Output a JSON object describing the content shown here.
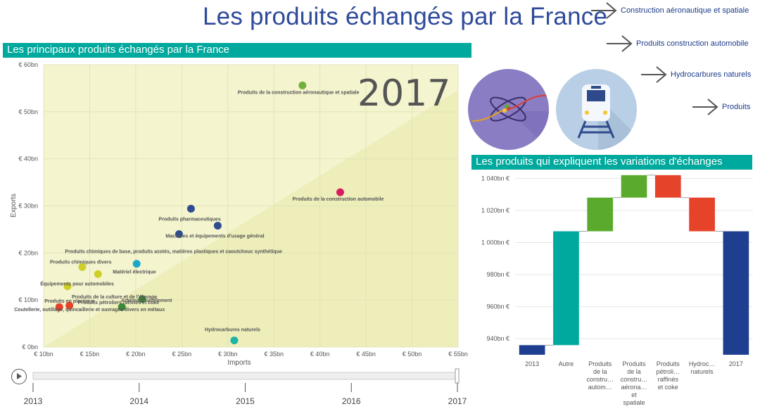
{
  "header": {
    "title": "Les produits échangés par la France"
  },
  "nav_links": [
    {
      "label": "Construction aéronautique et spatiale"
    },
    {
      "label": "Produits construction automobile"
    },
    {
      "label": "Hydrocarbures naturels"
    },
    {
      "label": "Produits"
    }
  ],
  "scatter_section": {
    "title": "Les principaux produits échangés par la France",
    "year": "2017"
  },
  "waterfall_section": {
    "title": "Les produits qui expliquent les variations d'échanges"
  },
  "timeline": {
    "labels": [
      "2013",
      "2014",
      "2015",
      "2016",
      "2017"
    ],
    "current": "2017"
  },
  "icons": [
    "aerospace-icon",
    "train-icon",
    "play-icon"
  ],
  "colors": {
    "teal": "#00a99d",
    "navy": "#1f3c8a",
    "green": "#5aab2d",
    "red": "#e5432a"
  },
  "chart_data": [
    {
      "type": "scatter",
      "title": "",
      "xlabel": "Imports",
      "ylabel": "Exports",
      "xlim": [
        10,
        55
      ],
      "ylim": [
        0,
        60
      ],
      "x_ticks": [
        "€ 10bn",
        "€ 15bn",
        "€ 20bn",
        "€ 25bn",
        "€ 30bn",
        "€ 35bn",
        "€ 40bn",
        "€ 45bn",
        "€ 50bn",
        "€ 55bn"
      ],
      "y_ticks": [
        "€ 0bn",
        "€ 10bn",
        "€ 20bn",
        "€ 30bn",
        "€ 40bn",
        "€ 50bn",
        "€ 60bn"
      ],
      "points": [
        {
          "label": "Produits de la construction aéronautique et spatiale",
          "x": 38.1,
          "y": 55.6,
          "color": "#6fb13c"
        },
        {
          "label": "Produits de la construction automobile",
          "x": 42.2,
          "y": 32.9,
          "color": "#d81b60"
        },
        {
          "label": "Produits pharmaceutiques",
          "x": 26.0,
          "y": 29.4,
          "color": "#2e4d8f"
        },
        {
          "label": "Machines et équipements d'usage général",
          "x": 28.9,
          "y": 25.8,
          "color": "#2e4d8f"
        },
        {
          "label": "Produits chimiques de base, produits azotés, matières plastiques et caoutchouc synthétique",
          "x": 24.7,
          "y": 24.0,
          "color": "#2e4d8f"
        },
        {
          "label": "Matériel électrique",
          "x": 20.1,
          "y": 17.7,
          "color": "#1ba8c8"
        },
        {
          "label": "Produits chimiques divers",
          "x": 14.2,
          "y": 17.0,
          "color": "#cfcf2a"
        },
        {
          "label": "Équipements pour automobiles",
          "x": 15.9,
          "y": 15.5,
          "color": "#cfcf2a"
        },
        {
          "label": "Produits de la culture et de l'élevage",
          "x": 12.6,
          "y": 12.9,
          "color": "#cfcf2a"
        },
        {
          "label": "Articles d'habillement",
          "x": 20.7,
          "y": 10.2,
          "color": "#3a8a3a"
        },
        {
          "label": "Produits en plastique",
          "x": 18.5,
          "y": 8.5,
          "color": "#3a8a3a"
        },
        {
          "label": "Produits pétroliers raffinés et coke",
          "x": 12.8,
          "y": 8.8,
          "color": "#e5432a"
        },
        {
          "label": "Coutellerie, outillage, quincaillerie et ouvrages divers en métaux",
          "x": 11.7,
          "y": 8.5,
          "color": "#e5432a"
        },
        {
          "label": "Hydrocarbures naturels",
          "x": 30.7,
          "y": 1.4,
          "color": "#1fb5a5"
        }
      ]
    },
    {
      "type": "bar",
      "subtype": "waterfall",
      "title": "",
      "categories": [
        "2013",
        "Autre",
        "Produits de la constru… autom…",
        "Produits de la constru… aérona… et spatiale",
        "Produits pétroli… raffinés et coke",
        "Hydroc… naturels",
        "2017"
      ],
      "y_ticks": [
        "940bn €",
        "960bn €",
        "980bn €",
        "1 000bn €",
        "1 020bn €",
        "1 040bn €"
      ],
      "ylim": [
        930,
        1045
      ],
      "bars": [
        {
          "start": 930,
          "end": 936,
          "kind": "total",
          "color": "#1e3f8f"
        },
        {
          "start": 936,
          "end": 1007,
          "kind": "other",
          "color": "#00a99d"
        },
        {
          "start": 1007,
          "end": 1028,
          "kind": "increase",
          "color": "#5aab2d"
        },
        {
          "start": 1028,
          "end": 1042,
          "kind": "increase",
          "color": "#5aab2d"
        },
        {
          "start": 1042,
          "end": 1028,
          "kind": "decrease",
          "color": "#e5432a"
        },
        {
          "start": 1028,
          "end": 1007,
          "kind": "decrease",
          "color": "#e5432a"
        },
        {
          "start": 930,
          "end": 1007,
          "kind": "total",
          "color": "#1e3f8f"
        }
      ]
    }
  ]
}
